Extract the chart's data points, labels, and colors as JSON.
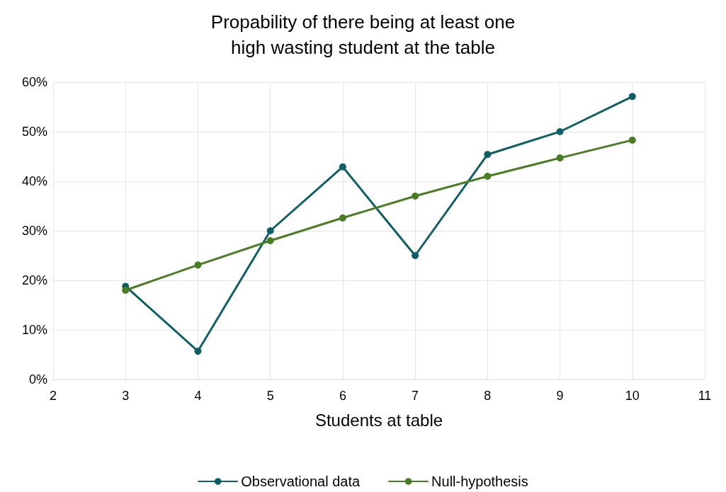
{
  "chart_data": {
    "type": "line",
    "title": "Propability of there being at least one\nhigh wasting student at the table",
    "xlabel": "Students at table",
    "x": [
      3,
      4,
      5,
      6,
      7,
      8,
      9,
      10
    ],
    "series": [
      {
        "name": "Observational data",
        "color": "#0e5f66",
        "values": [
          18.8,
          5.7,
          30,
          42.9,
          25,
          45.4,
          50,
          57.1
        ]
      },
      {
        "name": "Null-hypothesis",
        "color": "#4a7c23",
        "values": [
          18,
          23.1,
          28,
          32.6,
          37,
          41,
          44.7,
          48.3
        ]
      }
    ],
    "xlim": [
      2,
      11
    ],
    "xticks": [
      2,
      3,
      4,
      5,
      6,
      7,
      8,
      9,
      10,
      11
    ],
    "ylim": [
      0,
      60
    ],
    "yticks": [
      {
        "value": 0,
        "label": "0%"
      },
      {
        "value": 10,
        "label": "10%"
      },
      {
        "value": 20,
        "label": "20%"
      },
      {
        "value": 30,
        "label": "30%"
      },
      {
        "value": 40,
        "label": "40%"
      },
      {
        "value": 50,
        "label": "50%"
      },
      {
        "value": 60,
        "label": "60%"
      }
    ],
    "grid": true,
    "legend": "bottom",
    "marker": "circle",
    "line_style": "solid"
  }
}
